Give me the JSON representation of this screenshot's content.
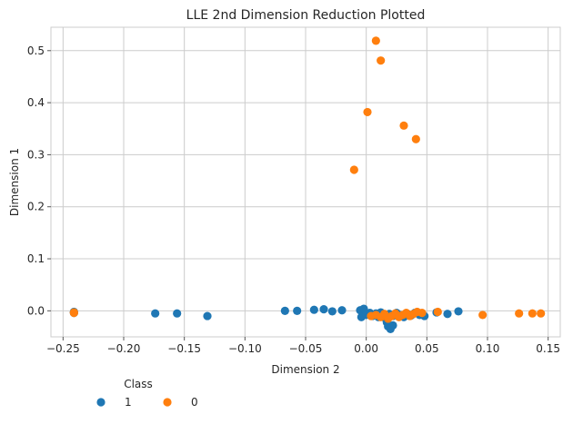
{
  "chart_data": {
    "type": "scatter",
    "title": "LLE 2nd Dimension Reduction Plotted",
    "xlabel": "Dimension 2",
    "ylabel": "Dimension 1",
    "xlim": [
      -0.26,
      0.16
    ],
    "ylim": [
      -0.05,
      0.545
    ],
    "xticks": [
      -0.25,
      -0.2,
      -0.15,
      -0.1,
      -0.05,
      0.0,
      0.05,
      0.1,
      0.15
    ],
    "xtick_labels": [
      "−0.25",
      "−0.20",
      "−0.15",
      "−0.10",
      "−0.05",
      "0.00",
      "0.05",
      "0.10",
      "0.15"
    ],
    "yticks": [
      0.0,
      0.1,
      0.2,
      0.3,
      0.4,
      0.5
    ],
    "ytick_labels": [
      "0.0",
      "0.1",
      "0.2",
      "0.3",
      "0.4",
      "0.5"
    ],
    "grid": true,
    "legend": {
      "title": "Class",
      "placement": "bottom-left"
    },
    "series": [
      {
        "name": "1",
        "color": "#1f77b4",
        "points": [
          [
            -0.241,
            -0.003
          ],
          [
            -0.241,
            -0.002
          ],
          [
            -0.241,
            -0.004
          ],
          [
            -0.174,
            -0.005
          ],
          [
            -0.156,
            -0.005
          ],
          [
            -0.131,
            -0.01
          ],
          [
            -0.067,
            0.0
          ],
          [
            -0.057,
            0.0
          ],
          [
            -0.043,
            0.002
          ],
          [
            -0.035,
            0.003
          ],
          [
            -0.028,
            -0.001
          ],
          [
            -0.02,
            0.001
          ],
          [
            -0.005,
            0.001
          ],
          [
            -0.002,
            0.004
          ],
          [
            -0.004,
            -0.012
          ],
          [
            0.0,
            -0.008
          ],
          [
            0.003,
            -0.004
          ],
          [
            0.005,
            -0.01
          ],
          [
            0.008,
            -0.005
          ],
          [
            0.01,
            -0.012
          ],
          [
            0.012,
            -0.003
          ],
          [
            0.014,
            -0.009
          ],
          [
            0.016,
            -0.015
          ],
          [
            0.017,
            -0.022
          ],
          [
            0.018,
            -0.03
          ],
          [
            0.02,
            -0.035
          ],
          [
            0.022,
            -0.028
          ],
          [
            0.019,
            -0.006
          ],
          [
            0.022,
            -0.01
          ],
          [
            0.025,
            -0.004
          ],
          [
            0.028,
            -0.008
          ],
          [
            0.031,
            -0.012
          ],
          [
            0.034,
            -0.006
          ],
          [
            0.037,
            -0.009
          ],
          [
            0.04,
            -0.004
          ],
          [
            0.044,
            -0.008
          ],
          [
            0.048,
            -0.01
          ],
          [
            0.058,
            -0.003
          ],
          [
            0.067,
            -0.006
          ],
          [
            0.076,
            -0.001
          ]
        ]
      },
      {
        "name": "0",
        "color": "#ff7f0e",
        "points": [
          [
            -0.241,
            -0.003
          ],
          [
            -0.241,
            -0.004
          ],
          [
            -0.01,
            0.271
          ],
          [
            0.001,
            0.382
          ],
          [
            0.008,
            0.519
          ],
          [
            0.012,
            0.481
          ],
          [
            0.031,
            0.356
          ],
          [
            0.041,
            0.33
          ],
          [
            0.004,
            -0.01
          ],
          [
            0.008,
            -0.008
          ],
          [
            0.012,
            -0.012
          ],
          [
            0.015,
            -0.006
          ],
          [
            0.018,
            -0.015
          ],
          [
            0.021,
            -0.01
          ],
          [
            0.024,
            -0.005
          ],
          [
            0.027,
            -0.012
          ],
          [
            0.03,
            -0.008
          ],
          [
            0.033,
            -0.004
          ],
          [
            0.036,
            -0.01
          ],
          [
            0.039,
            -0.006
          ],
          [
            0.042,
            -0.002
          ],
          [
            0.046,
            -0.004
          ],
          [
            0.059,
            -0.002
          ],
          [
            0.096,
            -0.008
          ],
          [
            0.126,
            -0.005
          ],
          [
            0.137,
            -0.005
          ],
          [
            0.144,
            -0.005
          ]
        ]
      }
    ]
  }
}
